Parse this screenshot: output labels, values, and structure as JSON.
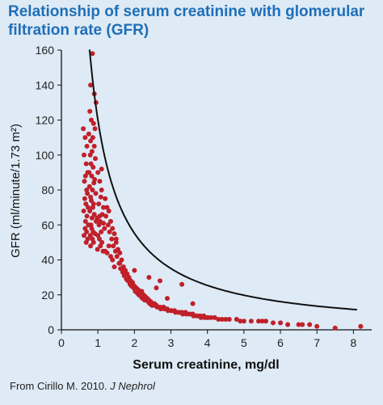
{
  "title": "Relationship of serum creatinine with glomerular filtration rate (GFR)",
  "source": {
    "prefix": "From Cirillo M. 2010.",
    "journal": "J Nephrol"
  },
  "colors": {
    "background": "#deeaf5",
    "title": "#1e6fb8",
    "points": "#c0202a",
    "curve": "#111111"
  },
  "chart_data": {
    "type": "scatter",
    "title": "Relationship of serum creatinine with glomerular filtration rate (GFR)",
    "xlabel": "Serum creatinine, mg/dl",
    "ylabel": "GFR  (ml/minute/1.73  m²)",
    "xlim": [
      0,
      8.5
    ],
    "ylim": [
      0,
      160
    ],
    "x_ticks": [
      "0",
      "1",
      "2",
      "3",
      "4",
      "5",
      "6",
      "7",
      "8"
    ],
    "y_ticks": [
      "0",
      "20",
      "40",
      "60",
      "80",
      "100",
      "120",
      "140",
      "160"
    ],
    "grid": false,
    "series": [
      {
        "kind": "points",
        "x": [
          0.85,
          0.8,
          0.9,
          0.95,
          0.78,
          0.82,
          0.88,
          0.92,
          0.75,
          0.86,
          0.8,
          0.9,
          0.84,
          0.79,
          0.93,
          0.81,
          0.87,
          0.76,
          0.83,
          0.91,
          0.89,
          0.77,
          0.85,
          0.94,
          0.8,
          0.82,
          0.88,
          0.86,
          0.78,
          0.9,
          0.84,
          0.95,
          0.81,
          0.83,
          0.87,
          0.92,
          0.79,
          0.85,
          0.88,
          0.8,
          0.6,
          0.65,
          0.7,
          0.62,
          0.68,
          0.72,
          0.66,
          0.63,
          0.69,
          0.71,
          0.64,
          0.67,
          0.73,
          0.61,
          0.7,
          0.66,
          0.74,
          0.65,
          0.69,
          0.62,
          0.72,
          0.68,
          1.0,
          1.05,
          1.1,
          1.08,
          1.02,
          1.15,
          1.12,
          0.98,
          1.06,
          1.03,
          1.18,
          1.09,
          1.0,
          1.04,
          1.11,
          1.07,
          0.99,
          1.14,
          1.2,
          1.25,
          1.3,
          1.22,
          1.35,
          1.28,
          1.4,
          1.32,
          1.45,
          1.38,
          1.5,
          1.42,
          1.55,
          1.48,
          1.6,
          1.52,
          1.65,
          1.58,
          1.7,
          1.62,
          1.75,
          1.68,
          1.8,
          1.72,
          1.85,
          1.78,
          1.9,
          1.82,
          1.95,
          1.88,
          2.0,
          1.92,
          2.05,
          1.98,
          2.1,
          2.02,
          2.15,
          2.08,
          2.2,
          2.12,
          2.25,
          2.18,
          2.3,
          2.22,
          2.35,
          2.28,
          2.4,
          2.32,
          2.45,
          2.38,
          2.5,
          2.42,
          2.55,
          2.48,
          2.6,
          2.52,
          2.7,
          2.62,
          2.8,
          2.72,
          2.9,
          2.82,
          3.0,
          2.92,
          3.1,
          3.02,
          3.2,
          3.12,
          3.3,
          3.22,
          3.4,
          3.32,
          3.5,
          3.42,
          3.6,
          3.52,
          3.7,
          3.62,
          3.8,
          3.72,
          3.9,
          3.82,
          4.0,
          3.92,
          4.1,
          4.02,
          4.2,
          4.3,
          4.4,
          4.5,
          4.6,
          4.8,
          4.9,
          5.0,
          5.2,
          5.4,
          5.5,
          5.6,
          5.8,
          6.0,
          6.2,
          6.5,
          6.6,
          6.8,
          7.0,
          7.5,
          8.2,
          1.2,
          1.35,
          1.6,
          1.4,
          1.3,
          1.45,
          2.0,
          2.4,
          2.7,
          3.3,
          1.1,
          1.5,
          1.15,
          1.25,
          2.2,
          2.9,
          3.6,
          1.05,
          1.7,
          2.6
        ],
        "y": [
          158,
          140,
          135,
          130,
          125,
          120,
          118,
          115,
          112,
          110,
          108,
          105,
          102,
          100,
          98,
          95,
          93,
          90,
          88,
          86,
          84,
          82,
          80,
          78,
          76,
          74,
          72,
          70,
          68,
          66,
          64,
          62,
          60,
          58,
          56,
          55,
          54,
          52,
          50,
          48,
          115,
          110,
          105,
          100,
          95,
          90,
          88,
          85,
          80,
          78,
          75,
          72,
          70,
          68,
          65,
          62,
          60,
          58,
          56,
          54,
          52,
          50,
          90,
          85,
          80,
          76,
          72,
          70,
          66,
          64,
          62,
          60,
          58,
          56,
          54,
          52,
          50,
          48,
          46,
          45,
          75,
          70,
          68,
          65,
          62,
          60,
          58,
          56,
          55,
          52,
          50,
          48,
          46,
          45,
          44,
          42,
          40,
          38,
          36,
          35,
          34,
          33,
          32,
          31,
          30,
          29,
          28,
          28,
          27,
          26,
          25,
          25,
          24,
          24,
          23,
          22,
          22,
          21,
          21,
          20,
          20,
          19,
          19,
          18,
          18,
          17,
          17,
          17,
          16,
          16,
          15,
          15,
          15,
          14,
          14,
          14,
          13,
          13,
          13,
          12,
          12,
          12,
          11,
          11,
          11,
          11,
          10,
          10,
          10,
          10,
          10,
          9,
          9,
          9,
          9,
          9,
          8,
          8,
          8,
          8,
          8,
          7,
          7,
          7,
          7,
          7,
          7,
          6,
          6,
          6,
          6,
          6,
          5,
          5,
          5,
          5,
          5,
          5,
          4,
          4,
          3,
          3,
          3,
          3,
          2,
          1,
          2,
          45,
          42,
          38,
          40,
          48,
          36,
          34,
          30,
          28,
          26,
          92,
          52,
          61,
          44,
          22,
          18,
          15,
          65,
          35,
          24
        ],
        "y_offset_note": "placeholder"
      },
      {
        "kind": "curve",
        "model": "power",
        "a": 120,
        "b": -1.12,
        "x_start": 0.76,
        "x_end": 8.1
      }
    ]
  }
}
